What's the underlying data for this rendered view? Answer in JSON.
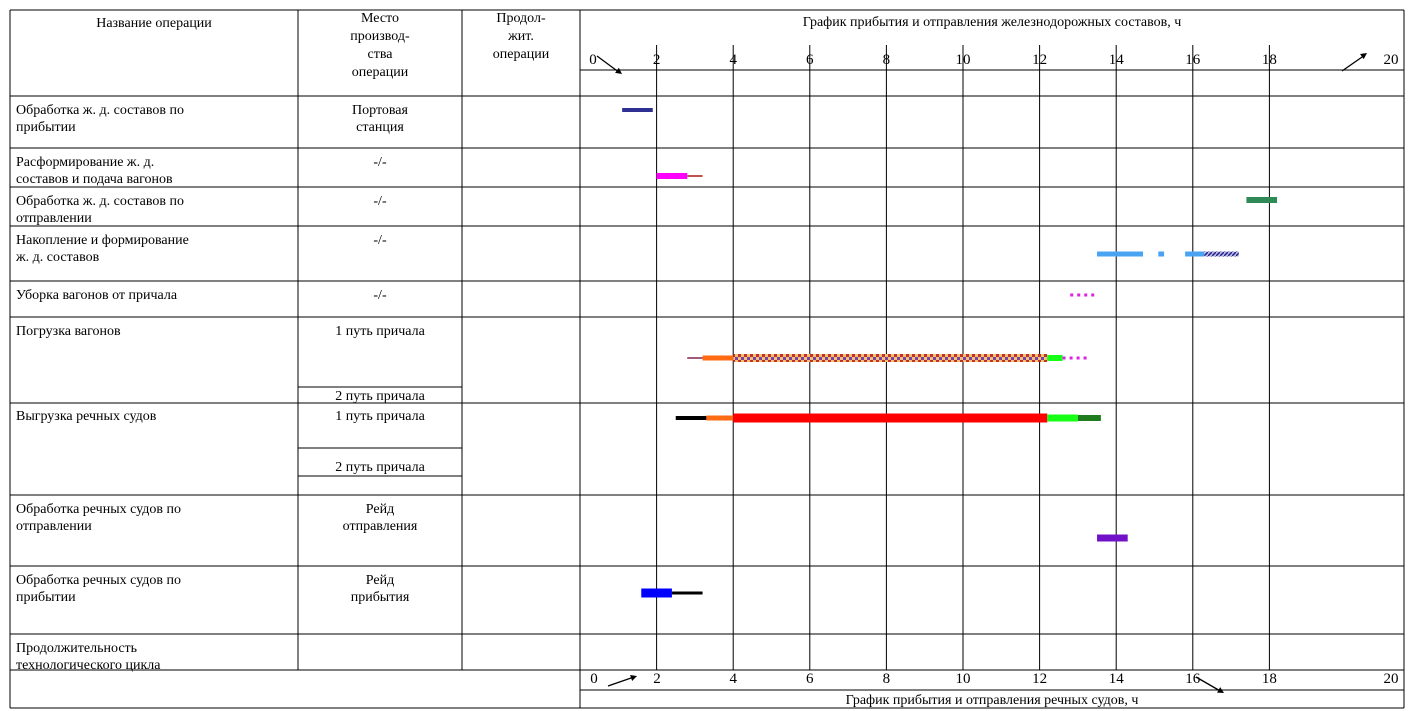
{
  "headers": {
    "operation": [
      "Название операции"
    ],
    "place": [
      "Место",
      "производ-",
      "ства",
      "операции"
    ],
    "duration": [
      "Продол-",
      "жит.",
      "операции"
    ],
    "top_axis_title": "График прибытия и отправления железнодорожных составов, ч",
    "bottom_axis_title": "График прибытия и отправления речных судов, ч"
  },
  "rows": [
    {
      "name": [
        "Обработка ж. д. составов по",
        "прибытии"
      ],
      "place": [
        "Портовая",
        "станция"
      ]
    },
    {
      "name": [
        "Расформирование ж. д.",
        "составов и подача вагонов"
      ],
      "place": [
        "-/-"
      ]
    },
    {
      "name": [
        "Обработка ж. д. составов по",
        "отправлении"
      ],
      "place": [
        "-/-"
      ]
    },
    {
      "name": [
        "Накопление и формирование",
        "ж. д. составов"
      ],
      "place": [
        "-/-"
      ]
    },
    {
      "name": [
        "Уборка вагонов от причала"
      ],
      "place": [
        "-/-"
      ]
    },
    {
      "name": [
        "Погрузка вагонов"
      ],
      "place": [
        "1 путь причала"
      ],
      "place2": [
        "2 путь причала"
      ]
    },
    {
      "name": [
        "Выгрузка речных судов"
      ],
      "place": [
        "1 путь причала"
      ],
      "place2": [
        "2 путь причала"
      ]
    },
    {
      "name": [
        "Обработка речных судов по",
        "отправлении"
      ],
      "place": [
        "Рейд",
        "отправления"
      ]
    },
    {
      "name": [
        "Обработка речных судов по",
        "прибытии"
      ],
      "place": [
        "Рейд",
        "прибытия"
      ]
    },
    {
      "name": [
        "Продолжительность",
        "технологического цикла"
      ],
      "place": [
        ""
      ]
    }
  ],
  "chart_data": {
    "type": "gantt",
    "top_axis": {
      "ticks": [
        0,
        2,
        4,
        6,
        8,
        10,
        12,
        14,
        16,
        18,
        20
      ],
      "range": [
        0,
        20
      ]
    },
    "bottom_axis": {
      "ticks": [
        0,
        2,
        4,
        6,
        8,
        10,
        12,
        14,
        16,
        18,
        20
      ],
      "range": [
        0,
        20
      ]
    },
    "bars": [
      {
        "row": 0,
        "start": 1.1,
        "end": 1.9,
        "color": "#2e3192",
        "style": "solid",
        "thick": 4
      },
      {
        "row": 1,
        "start": 2.0,
        "end": 2.8,
        "color": "#ff00ff",
        "style": "solid",
        "thick": 6
      },
      {
        "row": 1,
        "start": 2.8,
        "end": 3.2,
        "color": "#c0504d",
        "style": "solid",
        "thick": 2
      },
      {
        "row": 2,
        "start": 17.4,
        "end": 18.2,
        "color": "#2e8b57",
        "style": "solid",
        "thick": 6
      },
      {
        "row": 3,
        "start": 13.5,
        "end": 14.7,
        "color": "#4aa3f0",
        "style": "solid",
        "thick": 5
      },
      {
        "row": 3,
        "start": 15.1,
        "end": 15.25,
        "color": "#4aa3f0",
        "style": "solid",
        "thick": 5
      },
      {
        "row": 3,
        "start": 15.8,
        "end": 16.3,
        "color": "#4aa3f0",
        "style": "solid",
        "thick": 5
      },
      {
        "row": 3,
        "start": 16.3,
        "end": 17.2,
        "color": "#3a3aa8",
        "style": "hatch",
        "thick": 5
      },
      {
        "row": 4,
        "start": 12.8,
        "end": 13.5,
        "color": "#e020e0",
        "style": "dotted",
        "thick": 3
      },
      {
        "row": 5,
        "start": 2.8,
        "end": 3.2,
        "color": "#a05a7a",
        "style": "solid",
        "thick": 2
      },
      {
        "row": 5,
        "start": 3.2,
        "end": 4.0,
        "color": "#ff6a13",
        "style": "solid",
        "thick": 5
      },
      {
        "row": 5,
        "start": 4.0,
        "end": 12.2,
        "color": "#d92020",
        "style": "check",
        "thick": 8
      },
      {
        "row": 5,
        "start": 12.2,
        "end": 12.6,
        "color": "#16ff16",
        "style": "solid",
        "thick": 6
      },
      {
        "row": 5,
        "start": 12.6,
        "end": 13.3,
        "color": "#e020e0",
        "style": "dotted",
        "thick": 3
      },
      {
        "row": 6,
        "start": 2.5,
        "end": 3.3,
        "color": "#000000",
        "style": "solid",
        "thick": 4
      },
      {
        "row": 6,
        "start": 3.3,
        "end": 4.0,
        "color": "#ff6a13",
        "style": "solid",
        "thick": 5
      },
      {
        "row": 6,
        "start": 4.0,
        "end": 12.2,
        "color": "#ff0000",
        "style": "solid",
        "thick": 9
      },
      {
        "row": 6,
        "start": 12.2,
        "end": 13.0,
        "color": "#16ff16",
        "style": "solid",
        "thick": 7
      },
      {
        "row": 6,
        "start": 13.0,
        "end": 13.6,
        "color": "#1e7b1e",
        "style": "solid",
        "thick": 6
      },
      {
        "row": 7,
        "start": 13.5,
        "end": 14.3,
        "color": "#7010c8",
        "style": "solid",
        "thick": 7
      },
      {
        "row": 8,
        "start": 1.6,
        "end": 2.4,
        "color": "#0000ff",
        "style": "solid",
        "thick": 9
      },
      {
        "row": 8,
        "start": 2.4,
        "end": 3.2,
        "color": "#000000",
        "style": "solid",
        "thick": 3
      }
    ]
  }
}
